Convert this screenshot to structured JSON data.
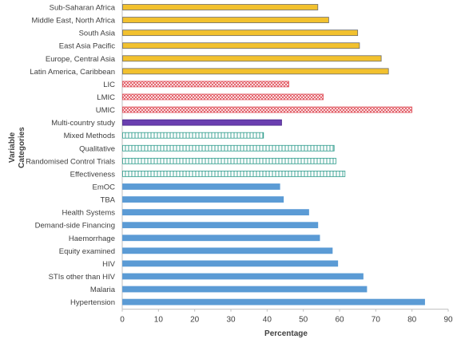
{
  "chart_data": {
    "type": "bar",
    "orientation": "horizontal",
    "xlabel": "Percentage",
    "ylabel_lines": [
      "Variable",
      "Categories"
    ],
    "xlim": [
      0,
      90
    ],
    "xticks": [
      0,
      10,
      20,
      30,
      40,
      50,
      60,
      70,
      80,
      90
    ],
    "grid": false,
    "bars": [
      {
        "label": "Sub-Saharan Africa",
        "value": 54,
        "group": "region"
      },
      {
        "label": "Middle East, North Africa",
        "value": 57,
        "group": "region"
      },
      {
        "label": "South Asia",
        "value": 65,
        "group": "region"
      },
      {
        "label": "East Asia Pacific",
        "value": 65.5,
        "group": "region"
      },
      {
        "label": "Europe, Central Asia",
        "value": 71.5,
        "group": "region"
      },
      {
        "label": "Latin America, Caribbean",
        "value": 73.5,
        "group": "region"
      },
      {
        "label": "LIC",
        "value": 46,
        "group": "income"
      },
      {
        "label": "LMIC",
        "value": 55.5,
        "group": "income"
      },
      {
        "label": "UMIC",
        "value": 80,
        "group": "income"
      },
      {
        "label": "Multi-country study",
        "value": 44,
        "group": "multi"
      },
      {
        "label": "Mixed Methods",
        "value": 39,
        "group": "method"
      },
      {
        "label": "Qualitative",
        "value": 58.5,
        "group": "method"
      },
      {
        "label": "Randomised Control Trials",
        "value": 59,
        "group": "method"
      },
      {
        "label": "Effectiveness",
        "value": 61.5,
        "group": "method"
      },
      {
        "label": "EmOC",
        "value": 43.5,
        "group": "topic"
      },
      {
        "label": "TBA",
        "value": 44.5,
        "group": "topic"
      },
      {
        "label": "Health Systems",
        "value": 51.5,
        "group": "topic"
      },
      {
        "label": "Demand-side Financing",
        "value": 54,
        "group": "topic"
      },
      {
        "label": "Haemorrhage",
        "value": 54.5,
        "group": "topic"
      },
      {
        "label": "Equity examined",
        "value": 58,
        "group": "topic"
      },
      {
        "label": "HIV",
        "value": 59.5,
        "group": "topic"
      },
      {
        "label": "STIs other than HIV",
        "value": 66.5,
        "group": "topic"
      },
      {
        "label": "Malaria",
        "value": 67.5,
        "group": "topic"
      },
      {
        "label": "Hypertension",
        "value": 83.5,
        "group": "topic"
      }
    ],
    "group_styles": {
      "region": {
        "fill": "#f2c12e",
        "stroke": "#6b6b6b",
        "pattern": "solid"
      },
      "income": {
        "fill": "#ffffff",
        "stroke": "#e0505a",
        "pattern": "crosshatch"
      },
      "multi": {
        "fill": "#6a3fb0",
        "stroke": "#4b2a8a",
        "pattern": "solid"
      },
      "method": {
        "fill": "#ffffff",
        "stroke": "#2e9c8c",
        "pattern": "vertical-lines"
      },
      "topic": {
        "fill": "#5b9bd5",
        "stroke": "#5b9bd5",
        "pattern": "solid"
      }
    }
  }
}
